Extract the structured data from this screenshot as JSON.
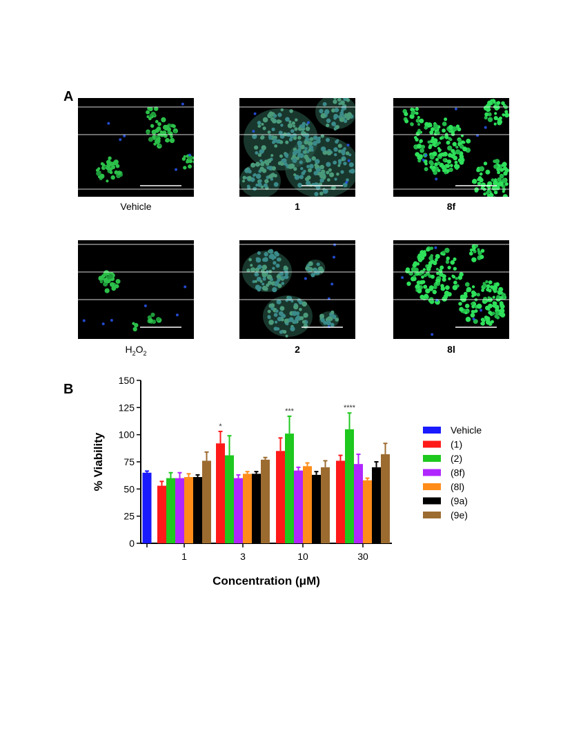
{
  "panelA": {
    "letter": "A",
    "images": [
      {
        "caption": "Vehicle",
        "bold": false,
        "theme": "sparse-green"
      },
      {
        "caption": "1",
        "bold": true,
        "theme": "teal-cloud"
      },
      {
        "caption": "8f",
        "bold": true,
        "theme": "bright-green"
      },
      {
        "caption_parts": [
          "H",
          "2",
          "O",
          "2"
        ],
        "bold": false,
        "theme": "very-sparse"
      },
      {
        "caption": "2",
        "bold": true,
        "theme": "teal-cloud"
      },
      {
        "caption": "8l",
        "bold": true,
        "theme": "bright-green"
      }
    ]
  },
  "panelB": {
    "letter": "B"
  },
  "chart_data": {
    "type": "bar",
    "title": "",
    "xlabel": "Concentration (μM)",
    "ylabel": "% Viability",
    "ylim": [
      0,
      150
    ],
    "yticks": [
      0,
      25,
      50,
      75,
      100,
      125,
      150
    ],
    "categories": [
      "",
      "1",
      "3",
      "10",
      "30"
    ],
    "series": [
      {
        "name": "Vehicle",
        "color": "#1a1aff",
        "values": [
          65,
          null,
          null,
          null,
          null
        ],
        "errors": [
          1.5,
          null,
          null,
          null,
          null
        ]
      },
      {
        "name": "(1)",
        "color": "#ff1a1a",
        "values": [
          null,
          53,
          92,
          85,
          76
        ],
        "errors": [
          null,
          4,
          11,
          12,
          5
        ]
      },
      {
        "name": "(2)",
        "color": "#1ec81e",
        "values": [
          null,
          60,
          81,
          101,
          105
        ],
        "errors": [
          null,
          5,
          18,
          16,
          15
        ]
      },
      {
        "name": "(8f)",
        "color": "#b026ff",
        "values": [
          null,
          60,
          60,
          67,
          73
        ],
        "errors": [
          null,
          5,
          3,
          3,
          9
        ]
      },
      {
        "name": "(8l)",
        "color": "#ff8c1a",
        "values": [
          null,
          61,
          64,
          71,
          58
        ],
        "errors": [
          null,
          3,
          2,
          3,
          2
        ]
      },
      {
        "name": "(9a)",
        "color": "#000000",
        "values": [
          null,
          61,
          64,
          63,
          70
        ],
        "errors": [
          null,
          2,
          2,
          3,
          5
        ]
      },
      {
        "name": "(9e)",
        "color": "#9c6b30",
        "values": [
          null,
          76,
          77,
          70,
          82
        ],
        "errors": [
          null,
          8,
          2,
          6,
          10
        ]
      }
    ],
    "annotations": [
      {
        "category": "3",
        "series": "(1)",
        "text": "*"
      },
      {
        "category": "10",
        "series": "(2)",
        "text": "***"
      },
      {
        "category": "30",
        "series": "(2)",
        "text": "****"
      }
    ],
    "legend": "right",
    "grid": false
  }
}
